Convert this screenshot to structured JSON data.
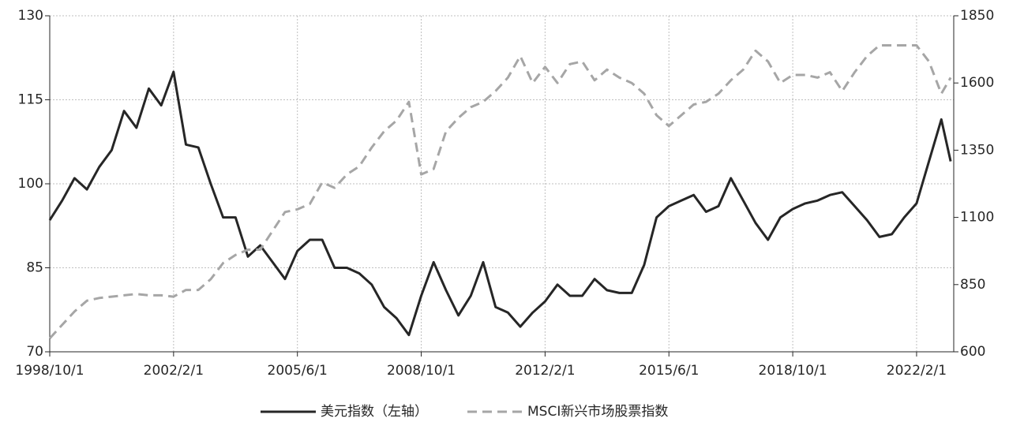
{
  "chart_data": {
    "type": "line",
    "x": [
      "1998/10/1",
      "1999/2/1",
      "1999/6/1",
      "1999/10/1",
      "2000/2/1",
      "2000/6/1",
      "2000/10/1",
      "2001/2/1",
      "2001/6/1",
      "2001/10/1",
      "2002/2/1",
      "2002/6/1",
      "2002/10/1",
      "2003/2/1",
      "2003/6/1",
      "2003/10/1",
      "2004/2/1",
      "2004/6/1",
      "2004/10/1",
      "2005/2/1",
      "2005/6/1",
      "2005/10/1",
      "2006/2/1",
      "2006/6/1",
      "2006/10/1",
      "2007/2/1",
      "2007/6/1",
      "2007/10/1",
      "2008/2/1",
      "2008/6/1",
      "2008/10/1",
      "2009/2/1",
      "2009/6/1",
      "2009/10/1",
      "2010/2/1",
      "2010/6/1",
      "2010/10/1",
      "2011/2/1",
      "2011/6/1",
      "2011/10/1",
      "2012/2/1",
      "2012/6/1",
      "2012/10/1",
      "2013/2/1",
      "2013/6/1",
      "2013/10/1",
      "2014/2/1",
      "2014/6/1",
      "2014/10/1",
      "2015/2/1",
      "2015/6/1",
      "2015/10/1",
      "2016/2/1",
      "2016/6/1",
      "2016/10/1",
      "2017/2/1",
      "2017/6/1",
      "2017/10/1",
      "2018/2/1",
      "2018/6/1",
      "2018/10/1",
      "2019/2/1",
      "2019/6/1",
      "2019/10/1",
      "2020/2/1",
      "2020/6/1",
      "2020/10/1",
      "2021/2/1",
      "2021/6/1",
      "2021/10/1",
      "2022/2/1",
      "2022/6/1",
      "2022/10/1",
      "2023/1/1"
    ],
    "series": [
      {
        "name": "美元指数（左轴）",
        "color": "#262626",
        "dash": false,
        "values": [
          93.5,
          97,
          101,
          99,
          103,
          106,
          113,
          110,
          117,
          114,
          120,
          107,
          106.5,
          100,
          94,
          94,
          87,
          89,
          86,
          83,
          88,
          90,
          90,
          85,
          85,
          84,
          82,
          78,
          76,
          73,
          80,
          86,
          81,
          76.5,
          80,
          86,
          78,
          77,
          74.5,
          77,
          79,
          82,
          80,
          80,
          83,
          81,
          80.5,
          80.5,
          85.5,
          94,
          96,
          97,
          98,
          95,
          96,
          101,
          97,
          93,
          90,
          94,
          95.5,
          96.5,
          97,
          98,
          98.5,
          96,
          93.5,
          90.5,
          91,
          94,
          96.5,
          104,
          111.5,
          104
        ]
      },
      {
        "name": "MSCI新兴市场股票指数",
        "color": "#a6a6a6",
        "dash": true,
        "axis": "y2",
        "values": [
          650,
          700,
          750,
          790,
          800,
          805,
          810,
          815,
          810,
          810,
          805,
          830,
          830,
          870,
          930,
          960,
          980,
          980,
          1050,
          1120,
          1130,
          1150,
          1230,
          1210,
          1260,
          1290,
          1360,
          1420,
          1460,
          1530,
          1260,
          1280,
          1420,
          1470,
          1510,
          1530,
          1570,
          1620,
          1700,
          1600,
          1660,
          1600,
          1670,
          1680,
          1610,
          1650,
          1620,
          1600,
          1560,
          1480,
          1440,
          1480,
          1520,
          1530,
          1560,
          1610,
          1650,
          1720,
          1680,
          1600,
          1630,
          1630,
          1620,
          1640,
          1570,
          1640,
          1700,
          1740,
          1740,
          1740,
          1740,
          1680,
          1560,
          1620
        ]
      }
    ],
    "xlim": [
      "1998/10/1",
      "2023/2/1"
    ],
    "xticks": [
      "1998/10/1",
      "2002/2/1",
      "2005/6/1",
      "2008/10/1",
      "2012/2/1",
      "2015/6/1",
      "2018/10/1",
      "2022/2/1"
    ],
    "ylim": [
      70,
      130
    ],
    "yticks": [
      70,
      85,
      100,
      115,
      130
    ],
    "y2lim": [
      600,
      1850
    ],
    "y2ticks": [
      600,
      850,
      1100,
      1350,
      1600,
      1850
    ],
    "grid": true
  }
}
